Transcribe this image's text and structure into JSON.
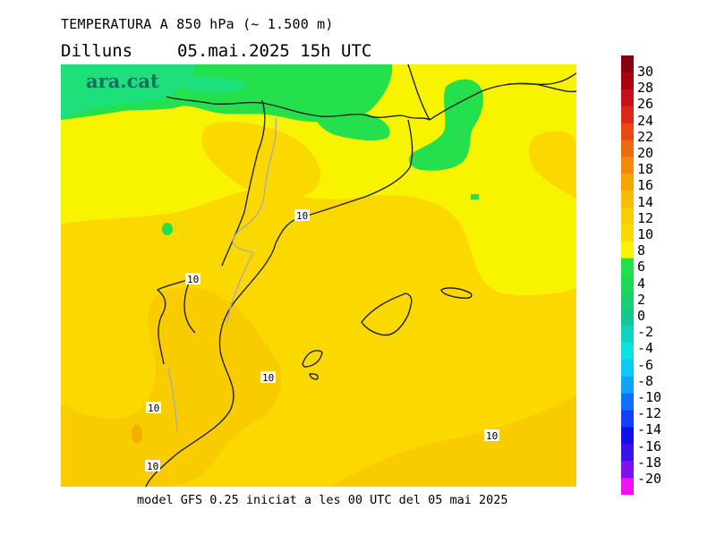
{
  "header": {
    "title": "TEMPERATURA A 850 hPa (~ 1.500 m)",
    "day": "Dilluns",
    "datetime": "05.mai.2025 15h UTC"
  },
  "map": {
    "logo_text": "ara.cat",
    "contour_value_label": "10",
    "colors": {
      "green_dark": "#1ee07a",
      "green": "#24e04c",
      "yellow_green": "#b8f000",
      "yellow": "#f8f400",
      "gold_light": "#fad800",
      "gold": "#f8cc00",
      "orange_light": "#f4b000",
      "border_line": "#333333",
      "inner_border": "#aaaaaa"
    }
  },
  "legend": {
    "labels": [
      "30",
      "28",
      "26",
      "24",
      "22",
      "20",
      "18",
      "16",
      "14",
      "12",
      "10",
      "8",
      "6",
      "4",
      "2",
      "0",
      "-2",
      "-4",
      "-6",
      "-8",
      "-10",
      "-12",
      "-14",
      "-16",
      "-18",
      "-20"
    ],
    "colors": [
      "#8a0010",
      "#aa0010",
      "#c41018",
      "#d82818",
      "#e84818",
      "#ee6a10",
      "#f08a08",
      "#f6a400",
      "#f8bc00",
      "#f8cc00",
      "#fad800",
      "#f8f400",
      "#24e04c",
      "#1ed858",
      "#18d070",
      "#14c894",
      "#10d2c0",
      "#10e0e4",
      "#10c8f8",
      "#10a4f8",
      "#1070f8",
      "#1040f8",
      "#1010e8",
      "#3c10e8",
      "#8010f0",
      "#f010f0"
    ]
  },
  "footer": {
    "text": "model GFS 0.25 iniciat a les 00 UTC del 05 mai 2025"
  }
}
